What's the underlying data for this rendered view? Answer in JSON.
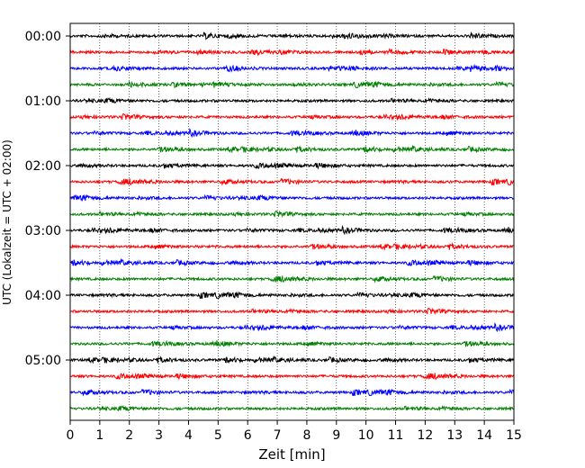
{
  "chart_data": {
    "type": "line",
    "title": "",
    "xlabel": "Zeit  [min]",
    "ylabel": "UTC (Lokalzeit = UTC + 02:00)",
    "xlim": [
      0,
      15
    ],
    "x_ticks": [
      "0",
      "1",
      "2",
      "3",
      "4",
      "5",
      "6",
      "7",
      "8",
      "9",
      "10",
      "11",
      "12",
      "13",
      "14",
      "15"
    ],
    "y_tick_labels": [
      "00:00",
      "01:00",
      "02:00",
      "03:00",
      "04:00",
      "05:00"
    ],
    "grid": "vertical-dotted",
    "trace_interval_min": 15,
    "trace_count": 24,
    "trace_colors": [
      "#000000",
      "#ff0000",
      "#0000ff",
      "#008000"
    ],
    "series": [
      {
        "start": "00:00",
        "color": "#000000"
      },
      {
        "start": "00:15",
        "color": "#ff0000"
      },
      {
        "start": "00:30",
        "color": "#0000ff"
      },
      {
        "start": "00:45",
        "color": "#008000"
      },
      {
        "start": "01:00",
        "color": "#000000"
      },
      {
        "start": "01:15",
        "color": "#ff0000"
      },
      {
        "start": "01:30",
        "color": "#0000ff"
      },
      {
        "start": "01:45",
        "color": "#008000"
      },
      {
        "start": "02:00",
        "color": "#000000"
      },
      {
        "start": "02:15",
        "color": "#ff0000"
      },
      {
        "start": "02:30",
        "color": "#0000ff"
      },
      {
        "start": "02:45",
        "color": "#008000"
      },
      {
        "start": "03:00",
        "color": "#000000"
      },
      {
        "start": "03:15",
        "color": "#ff0000"
      },
      {
        "start": "03:30",
        "color": "#0000ff"
      },
      {
        "start": "03:45",
        "color": "#008000"
      },
      {
        "start": "04:00",
        "color": "#000000"
      },
      {
        "start": "04:15",
        "color": "#ff0000"
      },
      {
        "start": "04:30",
        "color": "#0000ff"
      },
      {
        "start": "04:45",
        "color": "#008000"
      },
      {
        "start": "05:00",
        "color": "#000000"
      },
      {
        "start": "05:15",
        "color": "#ff0000"
      },
      {
        "start": "05:30",
        "color": "#0000ff"
      },
      {
        "start": "05:45",
        "color": "#008000"
      }
    ]
  }
}
